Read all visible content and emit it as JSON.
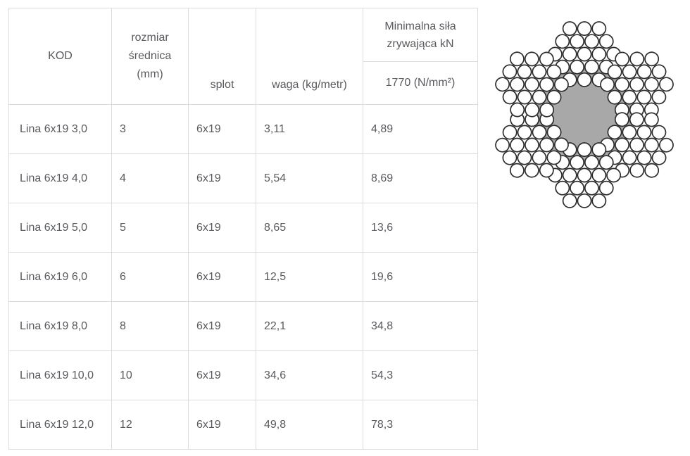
{
  "colors": {
    "border": "#dcdcdc",
    "text": "#595a5e",
    "core_gray": "#a8a8a8",
    "wire_fill": "#ffffff",
    "wire_stroke": "#2d2d2d"
  },
  "table": {
    "header": {
      "kod": "KOD",
      "rozmiar": "rozmiar\nśrednica\n(mm)",
      "splot": "splot",
      "waga": "waga (kg/metr)",
      "sila_top": "Minimalna siła zrywająca kN",
      "sila_bottom": "1770 (N/mm²)"
    },
    "column_keys": [
      "kod",
      "rozmiar",
      "splot",
      "waga",
      "sila"
    ],
    "rows": [
      [
        "Lina 6x19 3,0",
        "3",
        "6x19",
        "3,11",
        "4,89"
      ],
      [
        "Lina 6x19 4,0",
        "4",
        "6x19",
        "5,54",
        "8,69"
      ],
      [
        "Lina 6x19 5,0",
        "5",
        "6x19",
        "8,65",
        "13,6"
      ],
      [
        "Lina 6x19 6,0",
        "6",
        "6x19",
        "12,5",
        "19,6"
      ],
      [
        "Lina 6x19 8,0",
        "8",
        "6x19",
        "22,1",
        "34,8"
      ],
      [
        "Lina 6x19 10,0",
        "10",
        "6x19",
        "34,6",
        "54,3"
      ],
      [
        "Lina 6x19 12,0",
        "12",
        "6x19",
        "49,8",
        "78,3"
      ]
    ]
  },
  "diagram": {
    "label": "6x19",
    "strands": 6,
    "wires_per_strand": 19,
    "rows_pattern": [
      3,
      4,
      5,
      4,
      3
    ],
    "strand_angles": [
      90,
      30,
      -30,
      -90,
      -150,
      150
    ],
    "core_color": "#a8a8a8",
    "wire_fill": "#ffffff",
    "wire_stroke": "#2d2d2d"
  }
}
